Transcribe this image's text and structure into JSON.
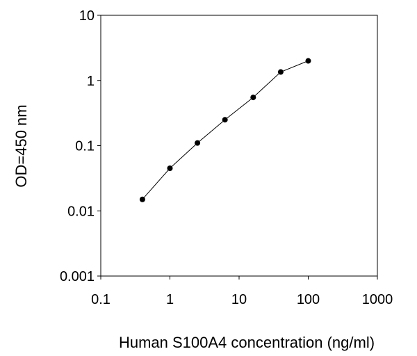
{
  "chart_data": {
    "type": "line",
    "title": "",
    "xlabel": "Human S100A4 concentration (ng/ml)",
    "ylabel": "OD=450 nm",
    "xscale": "log",
    "yscale": "log",
    "xlim": [
      0.1,
      1000
    ],
    "ylim": [
      0.001,
      10
    ],
    "x_ticks": [
      "0.1",
      "1",
      "10",
      "100",
      "1000"
    ],
    "y_ticks": [
      "10",
      "1",
      "0.1",
      "0.01",
      "0.001"
    ],
    "grid": false,
    "legend": "none",
    "series": [
      {
        "x": [
          0.4,
          1,
          2.5,
          6.25,
          16,
          40,
          100
        ],
        "y": [
          0.015,
          0.045,
          0.11,
          0.25,
          0.55,
          1.35,
          2.0
        ],
        "color": "#000000",
        "marker": "circle"
      }
    ]
  }
}
